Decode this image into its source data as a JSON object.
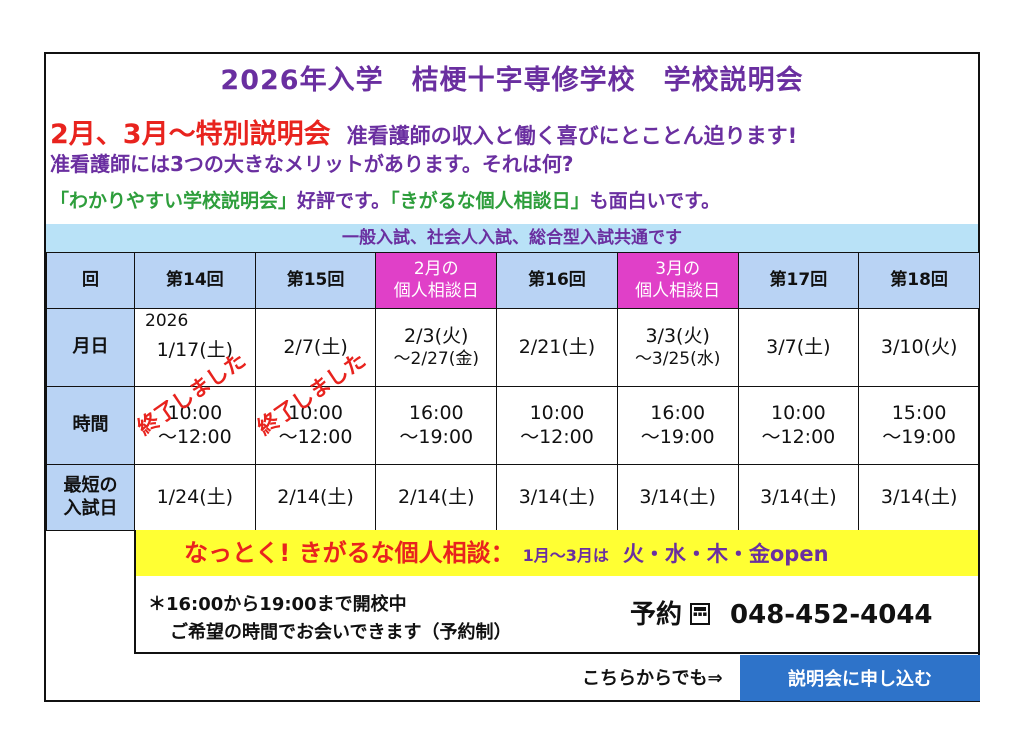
{
  "title": "2026年入学　桔梗十字専修学校　学校説明会",
  "headline": {
    "main": "2月、3月～特別説明会",
    "sub": "准看護師の収入と働く喜びにとことん迫ります!"
  },
  "merit_line": "准看護師には3つの大きなメリットがあります。それは何?",
  "review_line": {
    "part1": "「わかりやすい学校説明会」",
    "part2": "好評です。",
    "part3": "「きがるな個人相談日」",
    "part4": "も面白いです。"
  },
  "banner": "一般入試、社会人入試、総合型入試共通です",
  "schedule": {
    "row_labels": {
      "round": "回",
      "date": "月日",
      "time": "時間",
      "exam_line1": "最短の",
      "exam_line2": "入試日"
    },
    "columns": [
      {
        "head1": "第14回",
        "head2": "",
        "year": "2026",
        "date1": "1/17(土)",
        "date2": "",
        "time1": "10:00",
        "time2": "～12:00",
        "exam": "1/24(土)",
        "stamp": "終了しました"
      },
      {
        "head1": "第15回",
        "head2": "",
        "date1": "2/7(土)",
        "date2": "",
        "time1": "10:00",
        "time2": "～12:00",
        "exam": "2/14(土)",
        "stamp": "終了しました"
      },
      {
        "head1": "2月の",
        "head2": "個人相談日",
        "date1": "2/3(火)",
        "date2": "～2/27(金)",
        "time1": "16:00",
        "time2": "～19:00",
        "exam": "2/14(土)"
      },
      {
        "head1": "第16回",
        "head2": "",
        "date1": "2/21(土)",
        "date2": "",
        "time1": "10:00",
        "time2": "～12:00",
        "exam": "3/14(土)"
      },
      {
        "head1": "3月の",
        "head2": "個人相談日",
        "date1": "3/3(火)",
        "date2": "～3/25(水)",
        "time1": "16:00",
        "time2": "～19:00",
        "exam": "3/14(土)"
      },
      {
        "head1": "第17回",
        "head2": "",
        "date1": "3/7(土)",
        "date2": "",
        "time1": "10:00",
        "time2": "～12:00",
        "exam": "3/14(土)"
      },
      {
        "head1": "第18回",
        "head2": "",
        "date1": "3/10(火)",
        "date2": "",
        "time1": "15:00",
        "time2": "～19:00",
        "exam": "3/14(土)"
      }
    ]
  },
  "consult": {
    "main": "なっとく! きがるな個人相談",
    "colon": "：",
    "period": "1月～3月は",
    "days": "火・水・木・金open"
  },
  "notes": {
    "line1": "＊16:00から19:00まで開校中",
    "line2": "ご希望の時間でお会いできます（予約制）"
  },
  "reservation": {
    "label": "予約",
    "icon": "telephone-icon",
    "phone": "048-452-4044"
  },
  "apply": {
    "text": "こちらからでも⇒",
    "button": "説明会に申し込む"
  },
  "colors": {
    "purple": "#6a2fa0",
    "red": "#e8231e",
    "green": "#2e9e3c",
    "light_blue": "#b9e2f7",
    "header_blue": "#b9d3f4",
    "pink": "#e040c8",
    "yellow": "#ffff33",
    "button_blue": "#2e73c9"
  }
}
